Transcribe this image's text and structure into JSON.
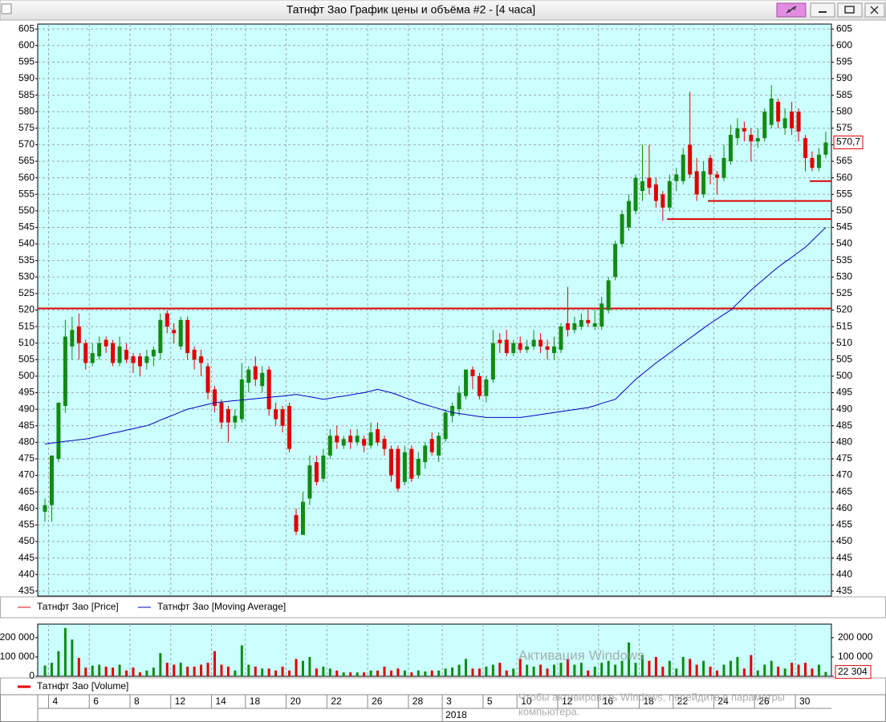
{
  "window_title": "Татнфт Зао График цены и объёма #2 - [4 часа]",
  "watermark": {
    "title": "Активация Windows",
    "line1": "Чтобы активировать Windows, перейдите в параметры",
    "line2": "компьютера."
  },
  "chart_data": [
    {
      "type": "candlestick",
      "ylim": [
        433.5,
        606.5
      ],
      "yticks": [
        435,
        440,
        445,
        450,
        455,
        460,
        465,
        470,
        475,
        480,
        485,
        490,
        495,
        500,
        505,
        510,
        515,
        520,
        525,
        530,
        535,
        540,
        545,
        550,
        555,
        560,
        565,
        570,
        575,
        580,
        585,
        590,
        595,
        600,
        605
      ],
      "grid": true,
      "x_group_label": "2018",
      "categories": [
        null,
        "4",
        null,
        null,
        null,
        null,
        null,
        "6",
        null,
        null,
        null,
        null,
        null,
        "8",
        null,
        null,
        null,
        null,
        null,
        "12",
        null,
        null,
        null,
        null,
        null,
        "14",
        null,
        null,
        null,
        null,
        "18",
        null,
        null,
        null,
        null,
        null,
        "20",
        null,
        null,
        null,
        null,
        null,
        "22",
        null,
        null,
        null,
        null,
        null,
        "26",
        null,
        null,
        null,
        null,
        null,
        "28",
        null,
        null,
        null,
        null,
        "3",
        null,
        null,
        null,
        null,
        null,
        "5",
        null,
        null,
        null,
        null,
        "10",
        null,
        null,
        null,
        null,
        null,
        "12",
        null,
        null,
        null,
        null,
        null,
        "16",
        null,
        null,
        null,
        null,
        null,
        "18",
        null,
        null,
        null,
        null,
        "22",
        null,
        null,
        null,
        null,
        null,
        "24",
        null,
        null,
        null,
        null,
        null,
        "26",
        null,
        null,
        null,
        null,
        null,
        "30",
        null,
        null,
        null,
        null
      ],
      "levels": [
        520.5,
        547.5,
        553,
        559
      ],
      "level_color": "#e00000",
      "series": [
        {
          "name": "Татнфт Зао [Price]",
          "color": "#e00000",
          "up_color": "#138a13",
          "down_color": "#e00000",
          "last_label": "570,7",
          "open": [
            459,
            461,
            475,
            491,
            509,
            515,
            510,
            504,
            506,
            511,
            510,
            504,
            508,
            506,
            506,
            504,
            506,
            507,
            519,
            514,
            509,
            517,
            508,
            506,
            503,
            496,
            492,
            490,
            486,
            487,
            498,
            503,
            497,
            502,
            490,
            490,
            491,
            458,
            452,
            463,
            474,
            469,
            476,
            482,
            479,
            482,
            480,
            481,
            479,
            484,
            481,
            478,
            478,
            468,
            478,
            470,
            474,
            481,
            476,
            481,
            488,
            490,
            494,
            502,
            500,
            494,
            499,
            511,
            511,
            507,
            510,
            508,
            509,
            511,
            509,
            507,
            508,
            516,
            514,
            515,
            517,
            515,
            515,
            520,
            530,
            540,
            545,
            550,
            556,
            560,
            558,
            555,
            551,
            559,
            559,
            570,
            562,
            555,
            566,
            561,
            560,
            565,
            572,
            575,
            573,
            571,
            572,
            576,
            583,
            575,
            580,
            580,
            572,
            566,
            563,
            567
          ],
          "high": [
            463,
            476,
            492,
            517,
            518,
            519,
            511,
            510,
            512,
            512,
            511,
            512,
            510,
            507,
            507,
            508,
            509,
            519,
            520,
            516,
            518,
            518,
            509,
            508,
            504,
            497,
            493,
            491,
            490,
            504,
            503,
            506,
            503,
            503,
            492,
            491,
            492,
            460,
            465,
            476,
            476,
            478,
            484,
            485,
            482,
            484,
            484,
            482,
            486,
            486,
            482,
            479,
            479,
            479,
            479,
            477,
            480,
            483,
            483,
            490,
            492,
            497,
            502,
            503,
            501,
            500,
            514,
            513,
            514,
            511,
            512,
            511,
            514,
            513,
            511,
            512,
            516,
            527,
            518,
            519,
            520,
            520,
            524,
            530,
            541,
            550,
            555,
            561,
            570,
            570,
            560,
            556,
            561,
            563,
            569,
            586,
            566,
            565,
            567,
            562,
            570,
            576,
            578,
            577,
            575,
            575,
            581,
            588,
            584,
            581,
            583,
            581,
            573,
            568,
            569,
            574
          ],
          "low": [
            456,
            456,
            474,
            489,
            505,
            505,
            502,
            503,
            505,
            507,
            503,
            503,
            504,
            501,
            500,
            502,
            503,
            505,
            513,
            510,
            508,
            505,
            502,
            500,
            493,
            489,
            484,
            480,
            484,
            486,
            495,
            497,
            495,
            488,
            485,
            483,
            477,
            452,
            452,
            461,
            467,
            468,
            475,
            478,
            478,
            478,
            479,
            477,
            478,
            479,
            476,
            468,
            465,
            467,
            468,
            469,
            472,
            476,
            474,
            480,
            486,
            488,
            493,
            496,
            493,
            492,
            498,
            507,
            506,
            506,
            507,
            507,
            508,
            507,
            505,
            505,
            507,
            512,
            513,
            514,
            515,
            514,
            514,
            519,
            529,
            539,
            544,
            549,
            553,
            555,
            551,
            547,
            550,
            556,
            558,
            560,
            553,
            554,
            558,
            555,
            559,
            564,
            570,
            571,
            565,
            569,
            571,
            575,
            575,
            573,
            573,
            571,
            562,
            562,
            562,
            566
          ],
          "close": [
            461,
            476,
            492,
            512,
            514,
            510,
            504,
            507,
            510,
            509,
            504,
            509,
            505,
            504,
            503,
            506,
            508,
            517,
            515,
            513,
            517,
            507,
            505,
            504,
            495,
            491,
            486,
            486,
            488,
            499,
            502,
            499,
            501,
            490,
            487,
            485,
            478,
            453,
            462,
            473,
            468,
            476,
            482,
            480,
            481,
            480,
            482,
            479,
            483,
            480,
            478,
            470,
            466,
            477,
            469,
            475,
            479,
            477,
            482,
            489,
            491,
            495,
            502,
            500,
            494,
            499,
            510,
            510,
            507,
            510,
            508,
            509,
            511,
            509,
            508,
            509,
            515,
            514,
            516,
            517,
            516,
            516,
            522,
            529,
            540,
            549,
            553,
            560,
            559,
            557,
            553,
            551,
            559,
            561,
            567,
            561,
            555,
            562,
            561,
            560,
            566,
            573,
            575,
            574,
            571,
            572,
            580,
            584,
            577,
            578,
            575,
            574,
            566,
            563,
            567,
            570.7
          ]
        },
        {
          "name": "Татнфт Зао [Moving Average]",
          "color": "#0000c0",
          "values": [
            479.5,
            479.8,
            480,
            480.3,
            480.5,
            480.8,
            481,
            481.4,
            481.9,
            482.3,
            482.8,
            483.2,
            483.7,
            484.1,
            484.6,
            485,
            485.8,
            486.7,
            487.5,
            488.3,
            489.2,
            490,
            490.5,
            491,
            491.5,
            492,
            492.2,
            492.4,
            492.6,
            492.8,
            493,
            493.2,
            493.4,
            493.6,
            493.8,
            494,
            494.2,
            494.5,
            494.1,
            493.8,
            493.4,
            493,
            493.3,
            493.7,
            494,
            494.3,
            494.7,
            495,
            495.5,
            496,
            495.5,
            495,
            494.3,
            493.5,
            492.8,
            492,
            491.4,
            490.8,
            490.2,
            489.6,
            489,
            488.7,
            488.4,
            488.1,
            487.8,
            487.5,
            487.5,
            487.5,
            487.5,
            487.5,
            487.5,
            487.8,
            488.1,
            488.4,
            488.7,
            489,
            489.3,
            489.6,
            489.9,
            490.2,
            490.5,
            491.1,
            491.8,
            492.4,
            493,
            495,
            497,
            499,
            500.7,
            502.3,
            504,
            505.5,
            507,
            508.5,
            510,
            511.5,
            513,
            514.5,
            516,
            517.3,
            518.7,
            520,
            522,
            524,
            526,
            527.8,
            529.5,
            531.3,
            533,
            534.5,
            536,
            537.5,
            539,
            541,
            543,
            545
          ]
        }
      ]
    },
    {
      "type": "bar",
      "ylim": [
        0,
        270000
      ],
      "yticks": [
        {
          "value": 0,
          "label": "0"
        },
        {
          "value": 100000,
          "label": "100 000"
        },
        {
          "value": 200000,
          "label": "200 000"
        }
      ],
      "series": [
        {
          "name": "Татнфт Зао [Volume]",
          "color": "#e00000",
          "last_label": "22 304",
          "values": [
            55000,
            70000,
            130000,
            250000,
            190000,
            95000,
            45000,
            55000,
            60000,
            50000,
            45000,
            60000,
            30000,
            45000,
            20000,
            30000,
            45000,
            120000,
            70000,
            60000,
            70000,
            50000,
            50000,
            60000,
            70000,
            130000,
            60000,
            50000,
            30000,
            160000,
            60000,
            50000,
            40000,
            40000,
            30000,
            50000,
            30000,
            90000,
            80000,
            100000,
            40000,
            50000,
            40000,
            30000,
            20000,
            20000,
            20000,
            20000,
            30000,
            30000,
            50000,
            30000,
            40000,
            30000,
            20000,
            30000,
            25000,
            30000,
            30000,
            40000,
            45000,
            60000,
            90000,
            40000,
            40000,
            50000,
            60000,
            70000,
            30000,
            40000,
            90000,
            60000,
            50000,
            60000,
            40000,
            60000,
            70000,
            90000,
            60000,
            70000,
            30000,
            50000,
            70000,
            80000,
            60000,
            80000,
            175000,
            70000,
            110000,
            80000,
            100000,
            50000,
            80000,
            40000,
            100000,
            90000,
            60000,
            80000,
            50000,
            30000,
            60000,
            80000,
            100000,
            40000,
            110000,
            30000,
            60000,
            80000,
            50000,
            40000,
            70000,
            60000,
            70000,
            40000,
            60000,
            22304
          ]
        }
      ]
    }
  ]
}
